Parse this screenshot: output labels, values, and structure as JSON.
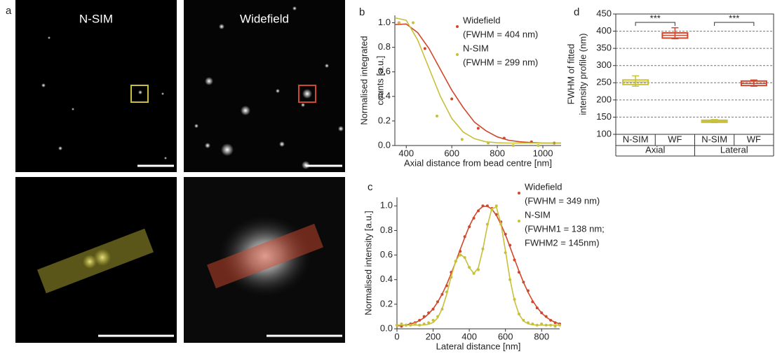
{
  "images": {
    "panel": "a",
    "titles": [
      "N-SIM",
      "Widefield"
    ]
  },
  "chart_data": [
    {
      "type": "line",
      "panel": "b",
      "xlabel": "Axial distance from bead centre [nm]",
      "ylabel": [
        "Normalised integrated",
        "counts [a.u.]"
      ],
      "xlim": [
        350,
        1080
      ],
      "xticks": [
        400,
        600,
        800,
        1000
      ],
      "ylim": [
        0,
        1.06
      ],
      "yticks": [
        {
          "value": 0,
          "label": "0.0"
        },
        {
          "value": 0.2,
          "label": "0.2"
        },
        {
          "value": 0.4,
          "label": "0.4"
        },
        {
          "value": 0.6,
          "label": "0.6"
        },
        {
          "value": 0.8,
          "label": "0.8"
        },
        {
          "value": 1,
          "label": "1.0"
        }
      ],
      "series": [
        {
          "name": "Widefield",
          "detail": [
            "(FWHM = 404 nm)"
          ],
          "color": "#d0482c",
          "x": [
            368,
            482,
            600,
            716,
            830,
            950,
            1050
          ],
          "values": [
            1.0,
            0.79,
            0.38,
            0.14,
            0.06,
            0.03,
            0.02
          ],
          "fit": {
            "x": [
              350,
              400,
              450,
              500,
              550,
              600,
              650,
              700,
              750,
              800,
              850,
              900,
              950,
              1000,
              1050,
              1080
            ],
            "values": [
              0.985,
              0.99,
              0.92,
              0.79,
              0.62,
              0.45,
              0.31,
              0.19,
              0.12,
              0.07,
              0.043,
              0.03,
              0.024,
              0.02,
              0.02,
              0.02
            ]
          }
        },
        {
          "name": "N-SIM",
          "detail": [
            "(FWHM = 299 nm)"
          ],
          "color": "#c8bf3a",
          "x": [
            368,
            430,
            535,
            645,
            760,
            870,
            980
          ],
          "values": [
            1.0,
            1.0,
            0.24,
            0.05,
            0.02,
            0.0,
            0.0
          ],
          "fit": {
            "x": [
              350,
              400,
              450,
              500,
              550,
              600,
              650,
              700,
              750,
              800,
              850,
              900,
              950,
              1000,
              1050,
              1080
            ],
            "values": [
              1.04,
              1.02,
              0.86,
              0.63,
              0.4,
              0.22,
              0.11,
              0.055,
              0.03,
              0.022,
              0.02,
              0.02,
              0.02,
              0.02,
              0.02,
              0.02
            ]
          }
        }
      ]
    },
    {
      "type": "line",
      "panel": "c",
      "xlabel": "Lateral distance [nm]",
      "ylabel": [
        "Normalised intensity [a.u.]"
      ],
      "xlim": [
        0,
        900
      ],
      "xticks": [
        0,
        200,
        400,
        600,
        800
      ],
      "ylim": [
        0,
        1.07
      ],
      "yticks": [
        {
          "value": 0,
          "label": "0.0"
        },
        {
          "value": 0.2,
          "label": "0.2"
        },
        {
          "value": 0.4,
          "label": "0.4"
        },
        {
          "value": 0.6,
          "label": "0.6"
        },
        {
          "value": 0.8,
          "label": "0.8"
        },
        {
          "value": 1,
          "label": "1.0"
        }
      ],
      "series": [
        {
          "name": "Widefield",
          "detail": [
            "(FWHM = 349 nm)"
          ],
          "color": "#d0482c",
          "x": [
            0,
            25,
            50,
            75,
            100,
            125,
            150,
            175,
            200,
            225,
            250,
            275,
            300,
            325,
            350,
            375,
            400,
            425,
            450,
            475,
            500,
            525,
            550,
            575,
            600,
            625,
            650,
            675,
            700,
            725,
            750,
            775,
            800,
            825,
            850,
            875,
            900
          ],
          "values": [
            0.03,
            0.02,
            0.03,
            0.04,
            0.05,
            0.07,
            0.1,
            0.13,
            0.16,
            0.22,
            0.28,
            0.35,
            0.46,
            0.55,
            0.63,
            0.75,
            0.83,
            0.9,
            0.96,
            1.0,
            1.0,
            0.98,
            0.93,
            0.87,
            0.77,
            0.68,
            0.56,
            0.46,
            0.38,
            0.31,
            0.22,
            0.17,
            0.13,
            0.1,
            0.07,
            0.05,
            0.04
          ],
          "fit": {
            "x": [
              0,
              25,
              50,
              75,
              100,
              125,
              150,
              175,
              200,
              225,
              250,
              275,
              300,
              325,
              350,
              375,
              400,
              425,
              450,
              475,
              500,
              525,
              550,
              575,
              600,
              625,
              650,
              675,
              700,
              725,
              750,
              775,
              800,
              825,
              850,
              875,
              900
            ],
            "values": [
              0.024,
              0.027,
              0.032,
              0.039,
              0.05,
              0.067,
              0.09,
              0.122,
              0.164,
              0.217,
              0.283,
              0.361,
              0.45,
              0.546,
              0.646,
              0.744,
              0.834,
              0.91,
              0.965,
              0.995,
              0.998,
              0.973,
              0.923,
              0.851,
              0.764,
              0.667,
              0.567,
              0.469,
              0.378,
              0.297,
              0.23,
              0.174,
              0.129,
              0.095,
              0.071,
              0.053,
              0.041
            ]
          }
        },
        {
          "name": "N-SIM",
          "detail": [
            "(FWHM1 = 138 nm;",
            " FWHM2 = 145nm)"
          ],
          "color": "#c8bf3a",
          "x": [
            0,
            25,
            50,
            75,
            100,
            125,
            150,
            175,
            200,
            225,
            250,
            275,
            300,
            325,
            350,
            375,
            400,
            425,
            450,
            475,
            500,
            525,
            550,
            575,
            600,
            625,
            650,
            675,
            700,
            725,
            750,
            775,
            800,
            825,
            850,
            875,
            900
          ],
          "values": [
            0.03,
            0.04,
            0.03,
            0.03,
            0.04,
            0.03,
            0.04,
            0.05,
            0.07,
            0.1,
            0.16,
            0.3,
            0.42,
            0.55,
            0.6,
            0.58,
            0.5,
            0.45,
            0.48,
            0.65,
            0.85,
            0.97,
            1.0,
            0.85,
            0.62,
            0.4,
            0.24,
            0.12,
            0.07,
            0.05,
            0.04,
            0.03,
            0.04,
            0.03,
            0.03,
            0.02,
            0.03
          ],
          "fit": {
            "x": [
              0,
              25,
              50,
              75,
              100,
              125,
              150,
              175,
              200,
              225,
              250,
              275,
              300,
              325,
              350,
              375,
              400,
              425,
              450,
              475,
              500,
              525,
              550,
              575,
              600,
              625,
              650,
              675,
              700,
              725,
              750,
              775,
              800,
              825,
              850,
              875,
              900
            ],
            "values": [
              0.03,
              0.03,
              0.03,
              0.03,
              0.03,
              0.03,
              0.032,
              0.037,
              0.052,
              0.089,
              0.163,
              0.281,
              0.427,
              0.552,
              0.608,
              0.577,
              0.499,
              0.451,
              0.497,
              0.645,
              0.838,
              0.979,
              0.989,
              0.856,
              0.634,
              0.404,
              0.227,
              0.118,
              0.063,
              0.041,
              0.033,
              0.03,
              0.03,
              0.03,
              0.03,
              0.03,
              0.03
            ]
          }
        }
      ]
    },
    {
      "type": "box",
      "panel": "d",
      "ylabel": [
        "FWHM of fitted",
        "intensity profile (nm)"
      ],
      "ylim": [
        100,
        450
      ],
      "yticks": [
        100,
        150,
        200,
        250,
        300,
        350,
        400,
        450
      ],
      "grid": true,
      "categories": [
        "N-SIM",
        "WF",
        "N-SIM",
        "WF"
      ],
      "groups": [
        "Axial",
        "Lateral"
      ],
      "annotations": [
        "***",
        "***"
      ],
      "boxes": [
        {
          "color": "#c8bf3a",
          "min": 240,
          "q1": 245,
          "median": 252,
          "q3": 258,
          "max": 270
        },
        {
          "color": "#d0482c",
          "min": 378,
          "q1": 380,
          "median": 388,
          "q3": 395,
          "max": 410
        },
        {
          "color": "#c8bf3a",
          "min": 134,
          "q1": 135,
          "median": 138,
          "q3": 141,
          "max": 143
        },
        {
          "color": "#d0482c",
          "min": 240,
          "q1": 242,
          "median": 248,
          "q3": 255,
          "max": 258
        }
      ]
    }
  ]
}
